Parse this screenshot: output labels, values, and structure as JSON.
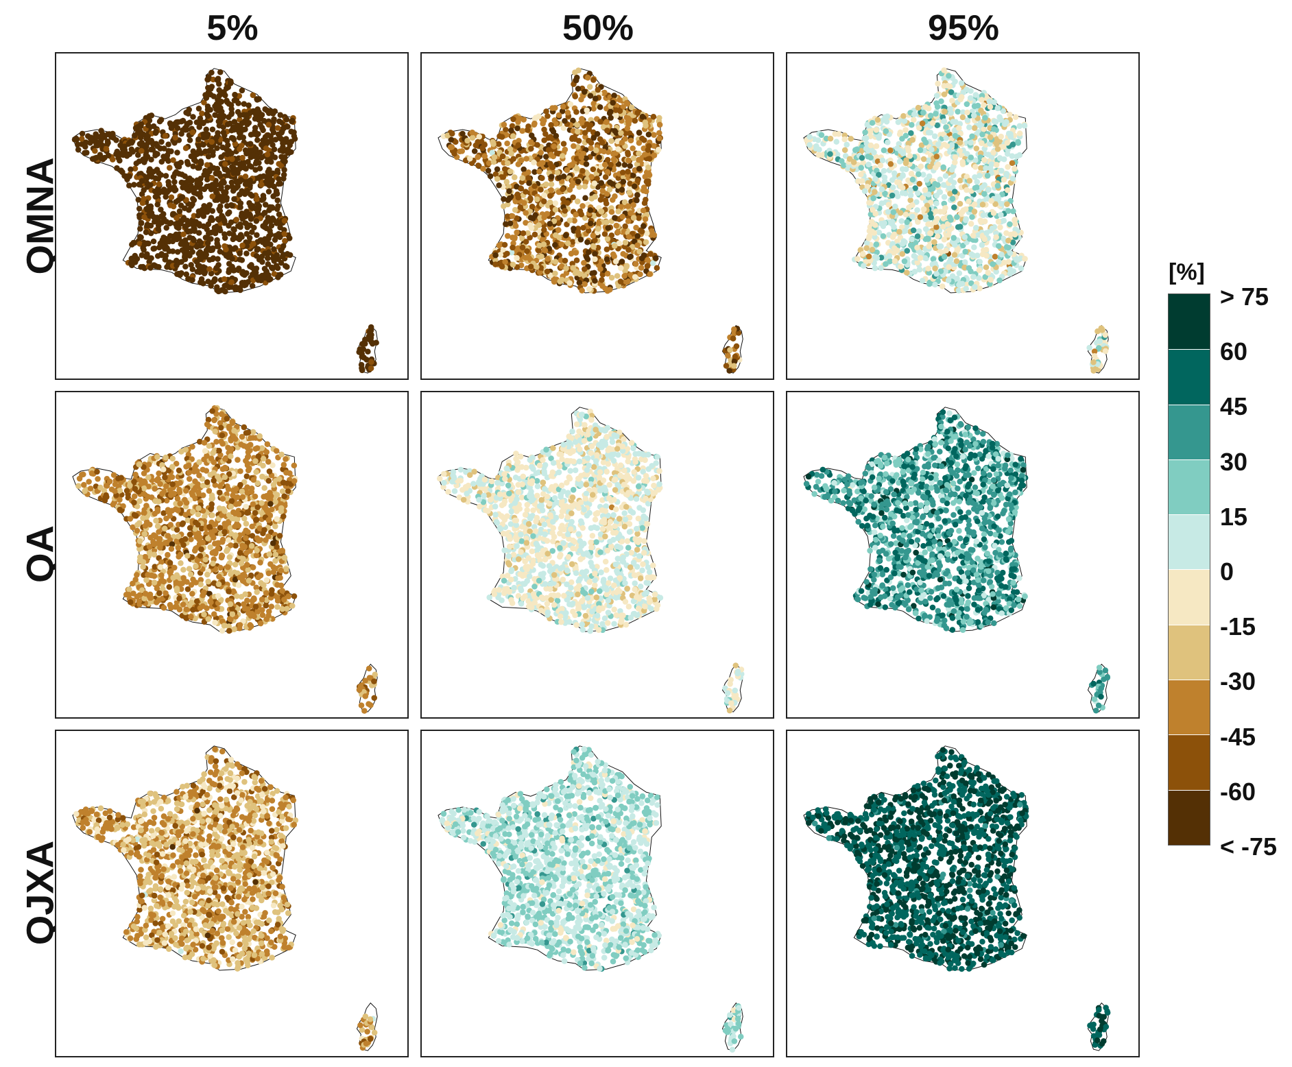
{
  "columns": [
    "5%",
    "50%",
    "95%"
  ],
  "rows": [
    "QMNA",
    "QA",
    "QJXA"
  ],
  "legend": {
    "unit": "[%]",
    "ticks": [
      "> 75",
      "60",
      "45",
      "30",
      "15",
      "0",
      "-15",
      "-30",
      "-45",
      "-60",
      "< -75"
    ],
    "colors_top_to_bottom": [
      "#003c30",
      "#01665e",
      "#35978f",
      "#80cdc1",
      "#c7eae5",
      "#f6e8c3",
      "#dfc27d",
      "#bf812d",
      "#8c510a",
      "#543005"
    ]
  },
  "panels": [
    {
      "row": "QMNA",
      "column": "5%",
      "mean_class": 9,
      "spread": 0.6
    },
    {
      "row": "QMNA",
      "column": "50%",
      "mean_class": 7.3,
      "spread": 1.6
    },
    {
      "row": "QMNA",
      "column": "95%",
      "mean_class": 4.3,
      "spread": 1.5
    },
    {
      "row": "QA",
      "column": "5%",
      "mean_class": 6.9,
      "spread": 1.1
    },
    {
      "row": "QA",
      "column": "50%",
      "mean_class": 4.6,
      "spread": 1.0
    },
    {
      "row": "QA",
      "column": "95%",
      "mean_class": 2.0,
      "spread": 1.3
    },
    {
      "row": "QJXA",
      "column": "5%",
      "mean_class": 6.4,
      "spread": 1.2
    },
    {
      "row": "QJXA",
      "column": "50%",
      "mean_class": 3.6,
      "spread": 0.9
    },
    {
      "row": "QJXA",
      "column": "95%",
      "mean_class": 0.6,
      "spread": 0.7
    }
  ]
}
